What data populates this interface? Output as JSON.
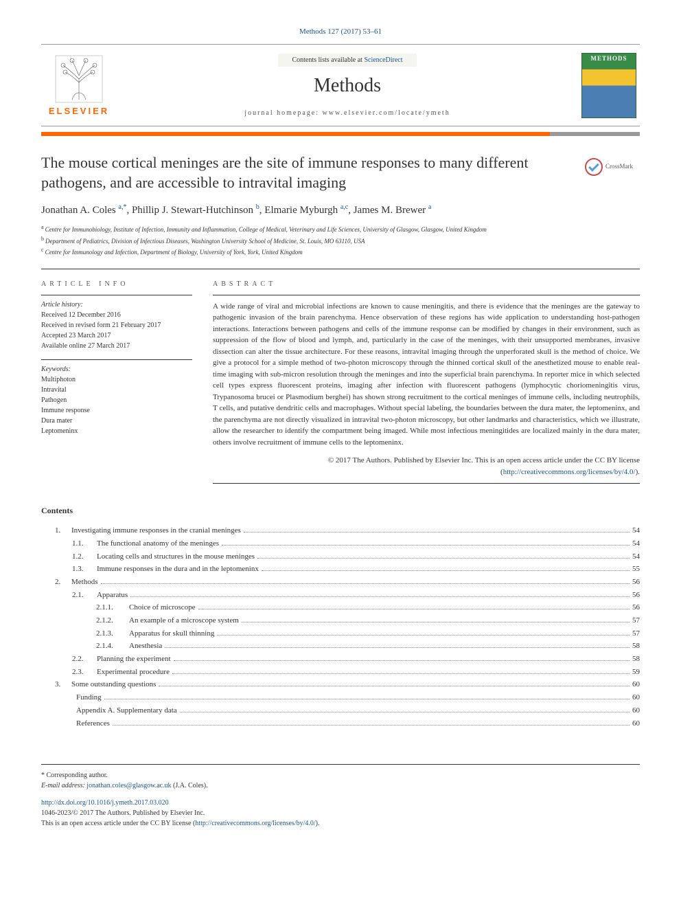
{
  "journal_ref": {
    "text": "Methods 127 (2017) 53–61",
    "href": "#"
  },
  "header": {
    "contents_prefix": "Contents lists available at ",
    "contents_link": "ScienceDirect",
    "journal_name": "Methods",
    "homepage_prefix": "journal homepage: ",
    "homepage": "www.elsevier.com/locate/ymeth",
    "elsevier": "ELSEVIER",
    "cover_label": "METHODS"
  },
  "article": {
    "title": "The mouse cortical meninges are the site of immune responses to many different pathogens, and are accessible to intravital imaging",
    "crossmark": "CrossMark",
    "authors": [
      {
        "name": "Jonathan A. Coles",
        "sup": "a,*"
      },
      {
        "name": "Phillip J. Stewart-Hutchinson",
        "sup": "b"
      },
      {
        "name": "Elmarie Myburgh",
        "sup": "a,c"
      },
      {
        "name": "James M. Brewer",
        "sup": "a"
      }
    ],
    "affiliations": [
      {
        "label": "a",
        "text": "Centre for Immunobiology, Institute of Infection, Immunity and Inflammation, College of Medical, Veterinary and Life Sciences, University of Glasgow, Glasgow, United Kingdom"
      },
      {
        "label": "b",
        "text": "Department of Pediatrics, Division of Infectious Diseases, Washington University School of Medicine, St. Louis, MO 63110, USA"
      },
      {
        "label": "c",
        "text": "Centre for Immunology and Infection, Department of Biology, University of York, York, United Kingdom"
      }
    ]
  },
  "info": {
    "heading": "ARTICLE INFO",
    "history_heading": "Article history:",
    "history": [
      "Received 12 December 2016",
      "Received in revised form 21 February 2017",
      "Accepted 23 March 2017",
      "Available online 27 March 2017"
    ],
    "keywords_heading": "Keywords:",
    "keywords": [
      "Multiphoton",
      "Intravital",
      "Pathogen",
      "Immune response",
      "Dura mater",
      "Leptomeninx"
    ]
  },
  "abstract": {
    "heading": "ABSTRACT",
    "text": "A wide range of viral and microbial infections are known to cause meningitis, and there is evidence that the meninges are the gateway to pathogenic invasion of the brain parenchyma. Hence observation of these regions has wide application to understanding host-pathogen interactions. Interactions between pathogens and cells of the immune response can be modified by changes in their environment, such as suppression of the flow of blood and lymph, and, particularly in the case of the meninges, with their unsupported membranes, invasive dissection can alter the tissue architecture. For these reasons, intravital imaging through the unperforated skull is the method of choice. We give a protocol for a simple method of two-photon microscopy through the thinned cortical skull of the anesthetized mouse to enable real-time imaging with sub-micron resolution through the meninges and into the superficial brain parenchyma. In reporter mice in which selected cell types express fluorescent proteins, imaging after infection with fluorescent pathogens (lymphocytic choriomeningitis virus, Trypanosoma brucei or Plasmodium berghei) has shown strong recruitment to the cortical meninges of immune cells, including neutrophils, T cells, and putative dendritic cells and macrophages. Without special labeling, the boundaries between the dura mater, the leptomeninx, and the parenchyma are not directly visualized in intravital two-photon microscopy, but other landmarks and characteristics, which we illustrate, allow the researcher to identify the compartment being imaged. While most infectious meningitides are localized mainly in the dura mater, others involve recruitment of immune cells to the leptomeninx.",
    "copyright": "© 2017 The Authors. Published by Elsevier Inc. This is an open access article under the CC BY license (",
    "license_link": "http://creativecommons.org/licenses/by/4.0/",
    "copyright_close": ")."
  },
  "contents": {
    "heading": "Contents",
    "items": [
      {
        "level": 1,
        "num": "1.",
        "title": "Investigating immune responses in the cranial meninges",
        "page": "54"
      },
      {
        "level": 2,
        "num": "1.1.",
        "title": "The functional anatomy of the meninges",
        "page": "54"
      },
      {
        "level": 2,
        "num": "1.2.",
        "title": "Locating cells and structures in the mouse meninges",
        "page": "54"
      },
      {
        "level": 2,
        "num": "1.3.",
        "title": "Immune responses in the dura and in the leptomeninx",
        "page": "55"
      },
      {
        "level": 1,
        "num": "2.",
        "title": "Methods",
        "page": "56"
      },
      {
        "level": 2,
        "num": "2.1.",
        "title": "Apparatus",
        "page": "56"
      },
      {
        "level": 3,
        "num": "2.1.1.",
        "title": "Choice of microscope",
        "page": "56"
      },
      {
        "level": 3,
        "num": "2.1.2.",
        "title": "An example of a microscope system",
        "page": "57"
      },
      {
        "level": 3,
        "num": "2.1.3.",
        "title": "Apparatus for skull thinning",
        "page": "57"
      },
      {
        "level": 3,
        "num": "2.1.4.",
        "title": "Anesthesia",
        "page": "58"
      },
      {
        "level": 2,
        "num": "2.2.",
        "title": "Planning the experiment",
        "page": "58"
      },
      {
        "level": 2,
        "num": "2.3.",
        "title": "Experimental procedure",
        "page": "59"
      },
      {
        "level": 1,
        "num": "3.",
        "title": "Some outstanding questions",
        "page": "60"
      },
      {
        "level": 2,
        "num": "",
        "title": "Funding",
        "page": "60"
      },
      {
        "level": 2,
        "num": "",
        "title": "Appendix A. Supplementary data",
        "page": "60"
      },
      {
        "level": 2,
        "num": "",
        "title": "References",
        "page": "60"
      }
    ]
  },
  "footer": {
    "corresponding": "* Corresponding author.",
    "email_label": "E-mail address: ",
    "email": "jonathan.coles@glasgow.ac.uk",
    "email_name": " (J.A. Coles).",
    "doi": "http://dx.doi.org/10.1016/j.ymeth.2017.03.020",
    "issn": "1046-2023/© 2017 The Authors. Published by Elsevier Inc.",
    "open_access": "This is an open access article under the CC BY license (",
    "license_link": "http://creativecommons.org/licenses/by/4.0/",
    "open_access_close": ")."
  },
  "colors": {
    "link": "#1a5490",
    "elsevier_orange": "#ff6600",
    "methods_green": "#398b48",
    "methods_yellow": "#f4c430",
    "methods_blue": "#4b7fb3",
    "crossmark_red": "#c94b4b",
    "crossmark_blue": "#5a9bd5"
  },
  "typography": {
    "body_pt": 12,
    "title_pt": 22,
    "journal_pt": 28,
    "small_pt": 10,
    "abstract_pt": 11
  }
}
